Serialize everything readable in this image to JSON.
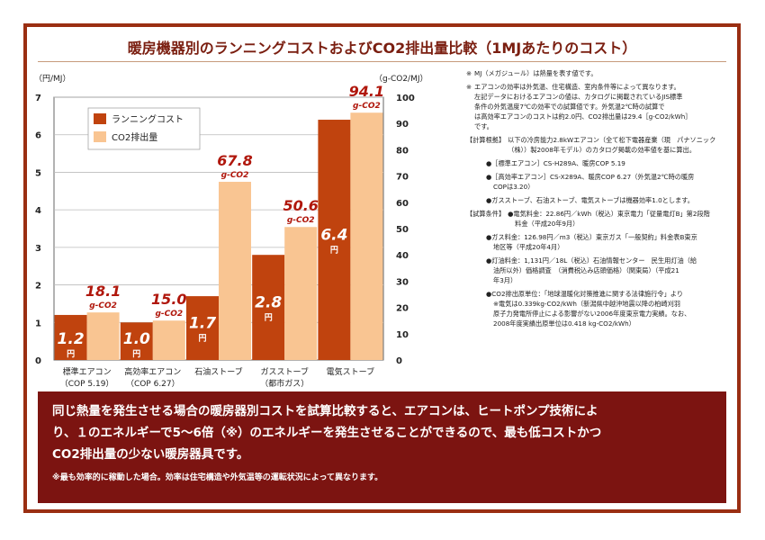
{
  "title": "暖房機器別のランニングコストおよびCO2排出量比較（1MJあたりのコスト）",
  "chart_data": {
    "type": "bar",
    "title": "暖房機器別のランニングコストおよびCO2排出量比較（1MJあたりのコスト）",
    "categories": [
      "標準エアコン",
      "高効率エアコン",
      "石油ストーブ",
      "ガスストーブ",
      "電気ストーブ"
    ],
    "category_sublabels": [
      "（COP 5.19）",
      "（COP 6.27）",
      "",
      "（都市ガス）",
      ""
    ],
    "series": [
      {
        "name": "ランニングコスト",
        "axis": "left",
        "color": "#c0430e",
        "values": [
          1.2,
          1.0,
          1.7,
          2.8,
          6.4
        ],
        "value_labels": [
          "1.2",
          "1.0",
          "1.7",
          "2.8",
          "6.4"
        ],
        "unit_label": "円"
      },
      {
        "name": "CO2排出量",
        "axis": "right",
        "color": "#f9c592",
        "values": [
          18.1,
          15.0,
          67.8,
          50.6,
          94.1
        ],
        "value_labels": [
          "18.1",
          "15.0",
          "67.8",
          "50.6",
          "94.1"
        ],
        "unit_label": "g-CO2"
      }
    ],
    "y_left": {
      "label": "（円/MJ）",
      "range": [
        0,
        7
      ],
      "ticks": [
        "0",
        "1",
        "2",
        "3",
        "4",
        "5",
        "6",
        "7"
      ]
    },
    "y_right": {
      "label": "（g-CO2/MJ）",
      "range": [
        0,
        100
      ],
      "ticks": [
        "0",
        "10",
        "20",
        "30",
        "40",
        "50",
        "60",
        "70",
        "80",
        "90",
        "100"
      ]
    },
    "legend_position": "top-left",
    "grid": true
  },
  "notes": [
    {
      "mark": "※",
      "lines": [
        "MJ（メガジュール）は熱量を表す値です。"
      ]
    },
    {
      "mark": "※",
      "lines": [
        "エアコンの効率は外気温、住宅構造、室内条件等によって異なります。",
        "左記データにおけるエアコンの値は、カタログに掲載されているJIS標準",
        "条件の外気温度7℃の効率での試算値です。外気温2℃時の試算で",
        "は高効率エアコンのコストは約2.0円、CO2排出量は29.4［g-CO2/kWh］",
        "です。"
      ]
    }
  ],
  "calc_basis": {
    "head": "【計算根拠】",
    "lines": [
      "以下の冷房能力2.8kWエアコン（全て松下電器産業（現　パナソニック",
      "（株））製2008年モデル）のカタログ掲載の効率値を基に算出。"
    ],
    "items": [
      [
        "●［標準エアコン］CS-H289A、暖房COP 5.19"
      ],
      [
        "●［高効率エアコン］CS-X289A、暖房COP 6.27（外気温2℃時の暖房",
        "COPは3.20）"
      ],
      [
        "●ガスストーブ、石油ストーブ、電気ストーブは機器効率1.0とします。"
      ]
    ]
  },
  "calc_conditions": {
    "head": "【試算条件】",
    "items": [
      [
        "●電気料金：22.86円／kWh（税込）東京電力「従量電灯B」第2段階",
        "料金（平成20年9月）"
      ],
      [
        "●ガス料金：126.98円／m3（税込）東京ガス「一般契約」料金表B東京",
        "地区等（平成20年4月）"
      ],
      [
        "●灯油料金：1,131円／18L（税込）石油情報センター　民生用灯油（給",
        "油所以外）価格調査　（消費税込み店頭価格）（関東局）（平成21",
        "年3月）"
      ],
      [
        "●CO2排出原単位：「地球温暖化対策推進に関する法律施行令」より",
        "※電気は0.339kg-CO2/kWh（新潟県中越沖地震以降の柏崎刈羽",
        "原子力発電所停止による影響がない2006年度東京電力実績。なお、",
        "2008年度実績出原単位は0.418 kg-CO2/kWh）"
      ]
    ]
  },
  "summary": {
    "main_lines": [
      "同じ熱量を発生させる場合の暖房器別コストを試算比較すると、エアコンは、ヒートポンプ技術によ",
      "り、１のエネルギーで5～6倍（※）のエネルギーを発生させることができるので、最も低コストかつ",
      "CO2排出量の少ない暖房器具です。"
    ],
    "footnote": "※最も効率的に稼動した場合。効率は住宅構造や外気温等の運転状況によって異なります。"
  }
}
